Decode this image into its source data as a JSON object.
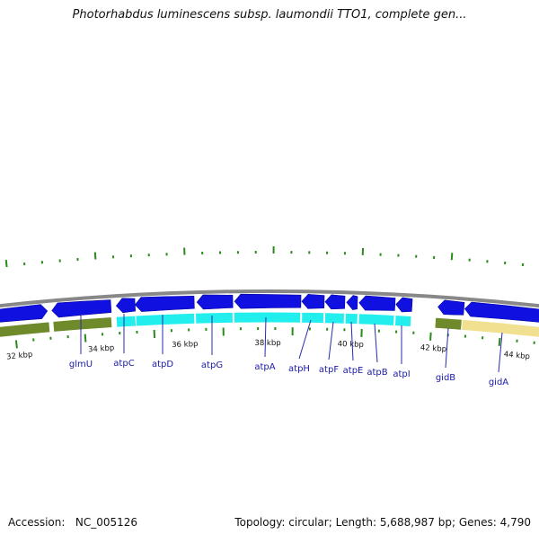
{
  "title": "Photorhabdus luminescens subsp. laumondii TTO1, complete gen...",
  "footer": {
    "accession_label": "Accession:",
    "accession": "NC_005126",
    "topology_label": "Topology:",
    "topology": "circular",
    "length_label": "Length:",
    "length": "5,688,987 bp",
    "genes_label": "Genes:",
    "genes": "4,790"
  },
  "scale_labels": [
    "32 kbp",
    "34 kbp",
    "36 kbp",
    "38 kbp",
    "40 kbp",
    "42 kbp",
    "44 kbp"
  ],
  "genes": [
    {
      "name": "glmU"
    },
    {
      "name": "atpC"
    },
    {
      "name": "atpD"
    },
    {
      "name": "atpG"
    },
    {
      "name": "atpA"
    },
    {
      "name": "atpH"
    },
    {
      "name": "atpF"
    },
    {
      "name": "atpE"
    },
    {
      "name": "atpB"
    },
    {
      "name": "atpI"
    },
    {
      "name": "gidB"
    },
    {
      "name": "gidA"
    }
  ],
  "colors": {
    "gene_arrow": "#1010e0",
    "gene_label": "#1a1aa8",
    "tick": "#2a8a1a",
    "backbone": "#888888",
    "cog_olive": "#6e8a2a",
    "cog_cyan": "#22eeee",
    "cog_tan": "#f0e090"
  }
}
